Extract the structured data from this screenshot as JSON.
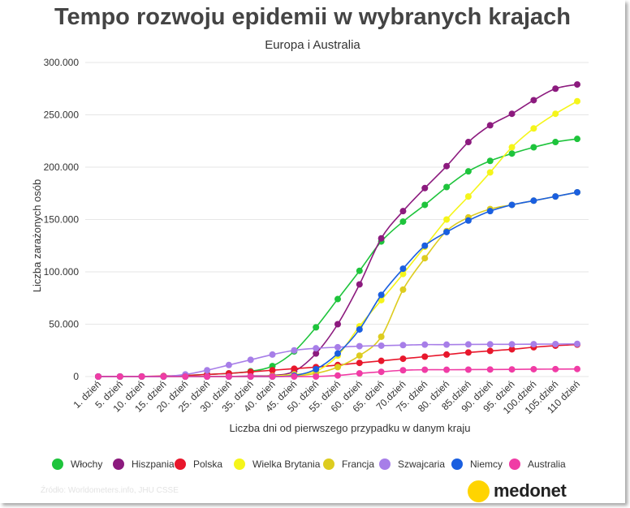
{
  "header": {
    "title": "Tempo rozwoju epidemii w wybranych krajach",
    "subtitle": "Europa i Australia"
  },
  "footer": {
    "source": "Źródło: Worldometers.info, JHU CSSE",
    "logo_text": "medonet",
    "logo_color": "#ffd400"
  },
  "chart_data": {
    "type": "line",
    "title": "Tempo rozwoju epidemii w wybranych krajach",
    "subtitle": "Europa i Australia",
    "xlabel": "Liczba dni od pierwszego przypadku w danym kraju",
    "ylabel": "Liczba zarażonych osób",
    "ylim": [
      0,
      300000
    ],
    "yticks": [
      0,
      50000,
      100000,
      150000,
      200000,
      250000,
      300000
    ],
    "ytick_labels": [
      "0",
      "50.000",
      "100.000",
      "150.000",
      "200.000",
      "250.000",
      "300.000"
    ],
    "grid": true,
    "legend": "bottom",
    "categories": [
      "1. dzień",
      "5. dzień",
      "10. dzień",
      "15. dzień",
      "20. dzień",
      "25. dzień",
      "30. dzień",
      "35. dzień",
      "40. dzień",
      "45. dzień",
      "50. dzień",
      "55. dzień",
      "60. dzień",
      "65. dzień",
      "70.dzień",
      "75. dzień",
      "80. dzień",
      "85.dzień",
      "90. dzień",
      "95. dzień",
      "100.dzień",
      "105.dzień",
      "110 dzień"
    ],
    "series": [
      {
        "name": "Włochy",
        "color": "#1ec43c",
        "values": [
          0,
          0,
          0,
          100,
          1000,
          2000,
          3000,
          5000,
          10000,
          24000,
          47000,
          74000,
          101000,
          129000,
          148000,
          164000,
          181000,
          196000,
          206000,
          213000,
          219000,
          224000,
          227000
        ]
      },
      {
        "name": "Hiszpania",
        "color": "#8c1a7e",
        "values": [
          0,
          0,
          0,
          0,
          0,
          0,
          0,
          500,
          1000,
          5000,
          22000,
          50000,
          88000,
          132000,
          158000,
          180000,
          201000,
          224000,
          240000,
          251000,
          264000,
          275000,
          279000
        ]
      },
      {
        "name": "Polska",
        "color": "#e8172c",
        "values": [
          0,
          0,
          100,
          500,
          1000,
          2000,
          3000,
          4500,
          6000,
          7500,
          9000,
          11000,
          13000,
          15000,
          17000,
          19000,
          21000,
          23000,
          24500,
          26000,
          28000,
          29500,
          30500
        ]
      },
      {
        "name": "Wielka Brytania",
        "color": "#f5f51a",
        "values": [
          0,
          0,
          0,
          0,
          0,
          0,
          0,
          0,
          500,
          2000,
          5000,
          20000,
          48000,
          73000,
          98000,
          124000,
          150000,
          172000,
          195000,
          219000,
          237000,
          251000,
          263000
        ]
      },
      {
        "name": "Francja",
        "color": "#ddcc1f",
        "values": [
          0,
          0,
          0,
          0,
          0,
          0,
          0,
          0,
          0,
          500,
          3000,
          9000,
          20000,
          38000,
          83000,
          113000,
          139000,
          152000,
          160000,
          164000,
          168000,
          172000,
          176000
        ]
      },
      {
        "name": "Szwajcaria",
        "color": "#a77ee8",
        "values": [
          0,
          0,
          0,
          0,
          2000,
          6000,
          11000,
          16000,
          21000,
          25000,
          27000,
          28000,
          29000,
          29500,
          30000,
          30500,
          30500,
          30700,
          30800,
          30800,
          30900,
          31000,
          31200
        ]
      },
      {
        "name": "Niemcy",
        "color": "#1a5fe0",
        "values": [
          0,
          0,
          0,
          0,
          0,
          0,
          0,
          0,
          0,
          1000,
          7000,
          22000,
          45000,
          78000,
          103000,
          125000,
          138000,
          149000,
          158000,
          164000,
          168000,
          172000,
          176000
        ]
      },
      {
        "name": "Australia",
        "color": "#f03ca5",
        "values": [
          0,
          0,
          0,
          0,
          0,
          0,
          0,
          0,
          0,
          0,
          0,
          1000,
          3000,
          4500,
          6000,
          6500,
          6500,
          6600,
          6700,
          6800,
          7000,
          7100,
          7200
        ]
      }
    ]
  }
}
